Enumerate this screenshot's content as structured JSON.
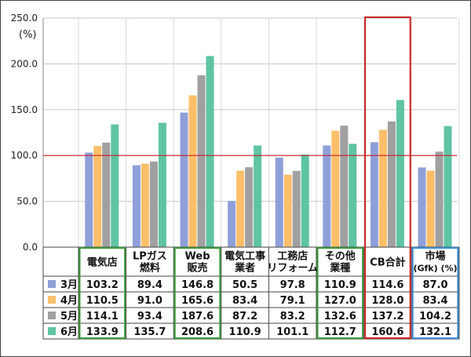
{
  "chart_data": {
    "type": "bar",
    "unit_label": "(%)",
    "ylim": [
      0,
      250
    ],
    "yticks": [
      "0.0",
      "50.0",
      "100.0",
      "150.0",
      "200.0",
      "250.0"
    ],
    "reference_line": 100,
    "categories": [
      [
        "電気店"
      ],
      [
        "LPガス",
        "燃料"
      ],
      [
        "Web",
        "販売"
      ],
      [
        "電気工事",
        "業者"
      ],
      [
        "工務店",
        "リフォーム"
      ],
      [
        "その他",
        "業種"
      ],
      [
        "CB合計"
      ],
      [
        "市場",
        "(Gfk) (%)"
      ]
    ],
    "series": [
      {
        "name": "3月",
        "color": "#8fa0d9",
        "values": [
          103.2,
          89.4,
          146.8,
          50.5,
          97.8,
          110.9,
          114.6,
          87.0
        ],
        "labels": [
          "103.2",
          "89.4",
          "146.8",
          "50.5",
          "97.8",
          "110.9",
          "114.6",
          "87.0"
        ]
      },
      {
        "name": "4月",
        "color": "#fbbf6a",
        "values": [
          110.5,
          91.0,
          165.6,
          83.4,
          79.1,
          127.0,
          128.0,
          83.4
        ],
        "labels": [
          "110.5",
          "91.0",
          "165.6",
          "83.4",
          "79.1",
          "127.0",
          "128.0",
          "83.4"
        ]
      },
      {
        "name": "5月",
        "color": "#a0a0a0",
        "values": [
          114.1,
          93.4,
          187.6,
          87.2,
          83.2,
          132.6,
          137.2,
          104.2
        ],
        "labels": [
          "114.1",
          "93.4",
          "187.6",
          "87.2",
          "83.2",
          "132.6",
          "137.2",
          "104.2"
        ]
      },
      {
        "name": "6月",
        "color": "#5ec4a4",
        "values": [
          133.9,
          135.7,
          208.6,
          110.9,
          101.1,
          112.7,
          160.6,
          132.1
        ],
        "labels": [
          "133.9",
          "135.7",
          "208.6",
          "110.9",
          "101.1",
          "112.7",
          "160.6",
          "132.1"
        ]
      }
    ],
    "highlights": [
      {
        "category_index": 0,
        "color": "#3a9a3a"
      },
      {
        "category_index": 2,
        "color": "#3a9a3a"
      },
      {
        "category_index": 5,
        "color": "#3a9a3a"
      },
      {
        "category_index": 6,
        "color": "#cc2222"
      },
      {
        "category_index": 7,
        "color": "#3a8fd6"
      }
    ],
    "grid": true,
    "legend": "table"
  }
}
